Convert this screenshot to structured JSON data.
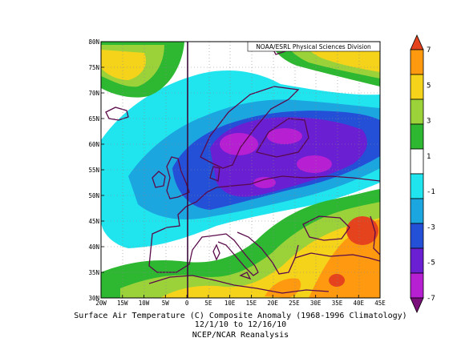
{
  "credit": "NOAA/ESRL Physical Sciences Division",
  "caption": {
    "line1": "Surface Air Temperature (C) Composite Anomaly (1968-1996 Climatology)",
    "line2": "12/1/10  to 12/16/10",
    "line3": "NCEP/NCAR Reanalysis"
  },
  "map": {
    "lon_range": [
      -20,
      45
    ],
    "lat_range": [
      30,
      80
    ],
    "lon_ticks": [
      "20W",
      "15W",
      "10W",
      "5W",
      "0",
      "5E",
      "10E",
      "15E",
      "20E",
      "25E",
      "30E",
      "35E",
      "40E",
      "45E"
    ],
    "lat_ticks": [
      "80N",
      "75N",
      "70N",
      "65N",
      "60N",
      "55N",
      "50N",
      "45N",
      "40N",
      "35N",
      "30N"
    ]
  },
  "colorbar": {
    "levels": [
      -7,
      -5,
      -3,
      -1,
      1,
      3,
      5,
      7
    ],
    "labels": [
      "7",
      "5",
      "3",
      "1",
      "-1",
      "-3",
      "-5",
      "-7"
    ],
    "colors": [
      "#E4431E",
      "#FF9A10",
      "#F5D31B",
      "#9BD23A",
      "#2EB832",
      "#FFFFFF",
      "#20E5EE",
      "#1CA6E0",
      "#2450D8",
      "#6A1FD2",
      "#B61FD2",
      "#7A0E7A"
    ]
  }
}
